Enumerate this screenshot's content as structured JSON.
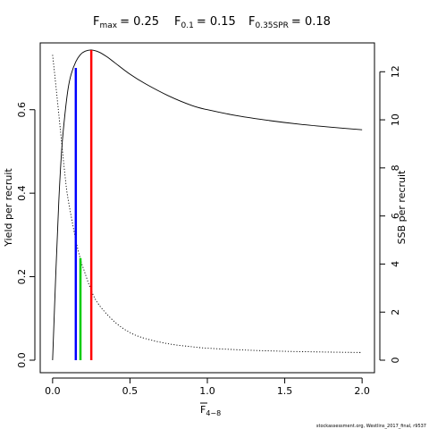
{
  "chart_data": {
    "type": "line",
    "title_parts": {
      "fmax_label": "F",
      "fmax_sub": "max",
      "fmax_value": "= 0.25",
      "f01_label": "F",
      "f01_sub": "0.1",
      "f01_value": "= 0.15",
      "fspr_label": "F",
      "fspr_sub": "0.35SPR",
      "fspr_value": "= 0.18"
    },
    "xlabel": "F",
    "xlabel_sub": "4−8",
    "ylabel_left": "Yield per recruit",
    "ylabel_right": "SSB per recruit",
    "xlim": [
      -0.08,
      2.08
    ],
    "ylim_left": [
      -0.03,
      0.76
    ],
    "ylim_right": [
      -0.52,
      13.2
    ],
    "x_ticks": [
      0,
      0.5,
      1,
      1.5,
      2
    ],
    "x_tick_labels": [
      "0.0",
      "0.5",
      "1.0",
      "1.5",
      "2.0"
    ],
    "y_left_ticks": [
      0,
      0.2,
      0.4,
      0.6
    ],
    "y_left_tick_labels": [
      "0.0",
      "0.2",
      "0.4",
      "0.6"
    ],
    "y_right_ticks": [
      0,
      2,
      4,
      6,
      8,
      10,
      12
    ],
    "y_right_tick_labels": [
      "0",
      "2",
      "4",
      "6",
      "8",
      "10",
      "12"
    ],
    "series": [
      {
        "name": "",
        "axis": "left",
        "style": "solid",
        "color": "#000000",
        "x": [
          0,
          0.02,
          0.04,
          0.06,
          0.08,
          0.1,
          0.12,
          0.15,
          0.18,
          0.21,
          0.25,
          0.3,
          0.35,
          0.4,
          0.5,
          0.6,
          0.75,
          0.9,
          1.0,
          1.2,
          1.4,
          1.6,
          1.8,
          2.0
        ],
        "values": [
          0.0,
          0.2,
          0.38,
          0.51,
          0.59,
          0.65,
          0.685,
          0.715,
          0.732,
          0.74,
          0.743,
          0.738,
          0.727,
          0.713,
          0.685,
          0.662,
          0.633,
          0.61,
          0.6,
          0.585,
          0.574,
          0.565,
          0.558,
          0.552
        ]
      },
      {
        "name": "",
        "axis": "right",
        "style": "dotted",
        "color": "#000000",
        "x": [
          0,
          0.02,
          0.05,
          0.08,
          0.1,
          0.15,
          0.18,
          0.2,
          0.25,
          0.3,
          0.4,
          0.5,
          0.6,
          0.75,
          0.9,
          1.0,
          1.25,
          1.5,
          1.75,
          2.0
        ],
        "values": [
          12.7,
          11.5,
          9.6,
          7.7,
          6.7,
          5.0,
          4.2,
          3.8,
          2.9,
          2.3,
          1.6,
          1.15,
          0.9,
          0.68,
          0.56,
          0.5,
          0.42,
          0.37,
          0.34,
          0.32
        ]
      }
    ],
    "reference_lines": [
      {
        "name": "F0.1",
        "x": 0.15,
        "axis": "left",
        "y_top": 0.7,
        "color": "#0000ff"
      },
      {
        "name": "F0.35SPR",
        "x": 0.18,
        "axis": "right",
        "y_top": 4.25,
        "color": "#00cc00"
      },
      {
        "name": "Fmax",
        "x": 0.25,
        "axis": "left",
        "y_top": 0.743,
        "color": "#ff0000"
      }
    ],
    "grid": false,
    "legend": "none"
  },
  "footer": {
    "credit": "stockassessment.org, Westlins_2017_final, r9537"
  }
}
